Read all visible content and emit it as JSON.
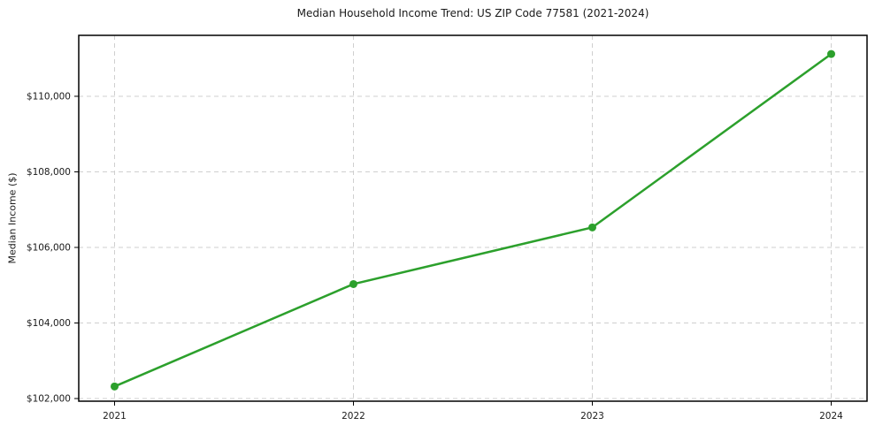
{
  "figure": {
    "background": "#ffffff"
  },
  "chart_data": {
    "type": "line",
    "title": "Median Household Income Trend: US ZIP Code 77581 (2021-2024)",
    "xlabel": "",
    "ylabel": "Median Income ($)",
    "x": [
      2021,
      2022,
      2023,
      2024
    ],
    "series": [
      {
        "name": "Median Household Income",
        "values": [
          102320,
          105030,
          106530,
          111120
        ]
      }
    ],
    "x_tick_labels": [
      "2021",
      "2022",
      "2023",
      "2024"
    ],
    "y_ticks": [
      102000,
      104000,
      106000,
      108000,
      110000
    ],
    "y_tick_labels": [
      "$102,000",
      "$104,000",
      "$106,000",
      "$108,000",
      "$110,000"
    ],
    "xlim": [
      2020.85,
      2024.15
    ],
    "ylim": [
      101930,
      111613
    ],
    "grid": "dashed-both-axes",
    "legend_position": "none",
    "marker": "circle",
    "colors": {
      "line": "#2ca02c",
      "marker": "#2ca02c",
      "grid": "#cfcfcf",
      "axis": "#000000",
      "tick_text": "#1a1a1a"
    }
  }
}
